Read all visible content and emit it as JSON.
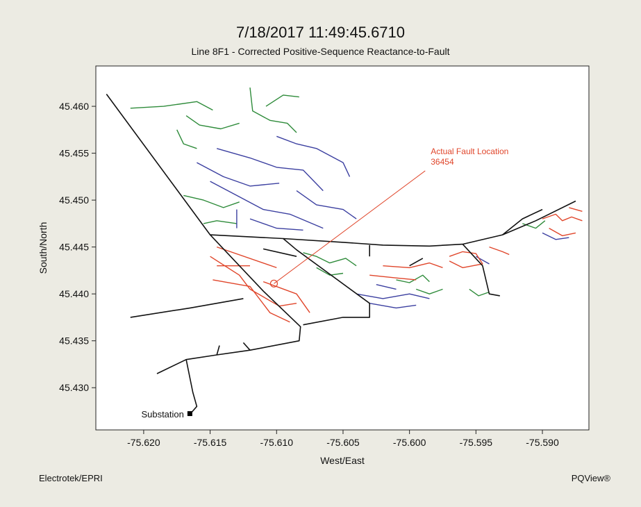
{
  "header": {
    "title": "7/18/2017 11:49:45.6710",
    "subtitle": "Line 8F1 - Corrected Positive-Sequence Reactance-to-Fault"
  },
  "footer": {
    "left": "Electrotek/EPRI",
    "right": "PQView®"
  },
  "colors": {
    "trunk": "#111111",
    "red_branch": "#e0452a",
    "green_branch": "#2e8b3a",
    "blue_branch": "#3b3fa0",
    "annotation": "#e0452a",
    "background": "#ecebe3",
    "plot_background": "#ffffff"
  },
  "chart_data": {
    "type": "scatter",
    "xlabel": "West/East",
    "ylabel": "South/North",
    "xlim": [
      -75.6236,
      -75.5865
    ],
    "ylim": [
      45.4255,
      45.4643
    ],
    "xticks": [
      -75.62,
      -75.615,
      -75.61,
      -75.605,
      -75.6,
      -75.595,
      -75.59
    ],
    "xtick_labels": [
      "-75.620",
      "-75.615",
      "-75.610",
      "-75.605",
      "-75.600",
      "-75.595",
      "-75.590"
    ],
    "yticks": [
      45.43,
      45.435,
      45.44,
      45.445,
      45.45,
      45.455,
      45.46
    ],
    "ytick_labels": [
      "45.430",
      "45.435",
      "45.440",
      "45.445",
      "45.450",
      "45.455",
      "45.460"
    ],
    "grid": false,
    "annotations": [
      {
        "label": "Actual Fault Location",
        "value": "36454",
        "point": [
          -75.6102,
          45.4411
        ],
        "text_at": [
          -75.5984,
          45.4549
        ]
      },
      {
        "label": "Substation",
        "point": [
          -75.6165,
          45.4272
        ]
      }
    ],
    "series": [
      {
        "color_key": "trunk",
        "lines": [
          [
            [
              -75.6228,
              45.4613
            ],
            [
              -75.615,
              45.4463
            ],
            [
              -75.611,
              45.4403
            ],
            [
              -75.6082,
              45.4365
            ],
            [
              -75.6083,
              45.435
            ],
            [
              -75.612,
              45.434
            ],
            [
              -75.6145,
              45.4335
            ],
            [
              -75.6168,
              45.433
            ],
            [
              -75.619,
              45.4315
            ]
          ],
          [
            [
              -75.6168,
              45.433
            ],
            [
              -75.6163,
              45.4295
            ],
            [
              -75.616,
              45.428
            ],
            [
              -75.6165,
              45.4272
            ]
          ],
          [
            [
              -75.615,
              45.4463
            ],
            [
              -75.6095,
              45.4459
            ],
            [
              -75.605,
              45.4455
            ],
            [
              -75.602,
              45.4452
            ],
            [
              -75.5985,
              45.4451
            ],
            [
              -75.596,
              45.4453
            ],
            [
              -75.593,
              45.4463
            ],
            [
              -75.5905,
              45.4478
            ],
            [
              -75.5875,
              45.4499
            ]
          ],
          [
            [
              -75.6095,
              45.4459
            ],
            [
              -75.6085,
              45.4447
            ],
            [
              -75.603,
              45.439
            ],
            [
              -75.603,
              45.4375
            ],
            [
              -75.605,
              45.4375
            ],
            [
              -75.608,
              45.4367
            ]
          ],
          [
            [
              -75.596,
              45.4453
            ],
            [
              -75.5945,
              45.443
            ],
            [
              -75.594,
              45.44
            ],
            [
              -75.5932,
              45.4398
            ]
          ],
          [
            [
              -75.593,
              45.4463
            ],
            [
              -75.5915,
              45.448
            ],
            [
              -75.59,
              45.449
            ]
          ],
          [
            [
              -75.611,
              45.4448
            ],
            [
              -75.6085,
              45.444
            ]
          ],
          [
            [
              -75.621,
              45.4375
            ],
            [
              -75.6165,
              45.4385
            ],
            [
              -75.6125,
              45.4395
            ]
          ],
          [
            [
              -75.612,
              45.434
            ],
            [
              -75.6125,
              45.4348
            ]
          ],
          [
            [
              -75.6145,
              45.4335
            ],
            [
              -75.6143,
              45.4345
            ]
          ],
          [
            [
              -75.6,
              45.443
            ],
            [
              -75.599,
              45.4438
            ]
          ],
          [
            [
              -75.603,
              45.4452
            ],
            [
              -75.603,
              45.444
            ]
          ]
        ]
      },
      {
        "color_key": "red_branch",
        "lines": [
          [
            [
              -75.615,
              45.444
            ],
            [
              -75.6128,
              45.442
            ],
            [
              -75.612,
              45.4405
            ]
          ],
          [
            [
              -75.612,
              45.4405
            ],
            [
              -75.6098,
              45.4387
            ],
            [
              -75.6085,
              45.439
            ]
          ],
          [
            [
              -75.6145,
              45.445
            ],
            [
              -75.61,
              45.4428
            ]
          ],
          [
            [
              -75.6145,
              45.443
            ],
            [
              -75.612,
              45.443
            ]
          ],
          [
            [
              -75.611,
              45.4413
            ],
            [
              -75.6085,
              45.44
            ],
            [
              -75.6075,
              45.438
            ]
          ],
          [
            [
              -75.6148,
              45.4415
            ],
            [
              -75.612,
              45.4408
            ],
            [
              -75.6105,
              45.438
            ],
            [
              -75.609,
              45.437
            ]
          ],
          [
            [
              -75.602,
              45.443
            ],
            [
              -75.6,
              45.4428
            ],
            [
              -75.5985,
              45.4433
            ],
            [
              -75.5975,
              45.4428
            ]
          ],
          [
            [
              -75.603,
              45.442
            ],
            [
              -75.601,
              45.4417
            ],
            [
              -75.5995,
              45.4415
            ]
          ],
          [
            [
              -75.597,
              45.444
            ],
            [
              -75.596,
              45.4445
            ],
            [
              -75.595,
              45.4443
            ],
            [
              -75.5945,
              45.4432
            ],
            [
              -75.596,
              45.4428
            ],
            [
              -75.597,
              45.4435
            ]
          ],
          [
            [
              -75.594,
              45.445
            ],
            [
              -75.593,
              45.4445
            ],
            [
              -75.5925,
              45.4442
            ]
          ],
          [
            [
              -75.59,
              45.448
            ],
            [
              -75.589,
              45.4485
            ],
            [
              -75.5885,
              45.4478
            ],
            [
              -75.5878,
              45.4482
            ],
            [
              -75.587,
              45.4478
            ]
          ],
          [
            [
              -75.5895,
              45.447
            ],
            [
              -75.5885,
              45.4462
            ],
            [
              -75.5875,
              45.4465
            ]
          ],
          [
            [
              -75.588,
              45.4492
            ],
            [
              -75.587,
              45.4488
            ]
          ]
        ]
      },
      {
        "color_key": "green_branch",
        "lines": [
          [
            [
              -75.621,
              45.4598
            ],
            [
              -75.6185,
              45.46
            ],
            [
              -75.616,
              45.4605
            ],
            [
              -75.6148,
              45.4596
            ]
          ],
          [
            [
              -75.6168,
              45.459
            ],
            [
              -75.6158,
              45.458
            ],
            [
              -75.6142,
              45.4576
            ],
            [
              -75.6128,
              45.4582
            ]
          ],
          [
            [
              -75.6175,
              45.4575
            ],
            [
              -75.617,
              45.456
            ],
            [
              -75.616,
              45.4555
            ]
          ],
          [
            [
              -75.612,
              45.462
            ],
            [
              -75.6118,
              45.4595
            ],
            [
              -75.6105,
              45.4585
            ],
            [
              -75.6092,
              45.4582
            ],
            [
              -75.6085,
              45.4572
            ]
          ],
          [
            [
              -75.6108,
              45.46
            ],
            [
              -75.6095,
              45.4612
            ],
            [
              -75.6083,
              45.461
            ]
          ],
          [
            [
              -75.617,
              45.4505
            ],
            [
              -75.6155,
              45.45
            ],
            [
              -75.614,
              45.4492
            ],
            [
              -75.6128,
              45.4498
            ]
          ],
          [
            [
              -75.6155,
              45.4475
            ],
            [
              -75.6145,
              45.4478
            ],
            [
              -75.613,
              45.4475
            ]
          ],
          [
            [
              -75.608,
              45.4444
            ],
            [
              -75.607,
              45.444
            ],
            [
              -75.606,
              45.4433
            ],
            [
              -75.6048,
              45.4438
            ],
            [
              -75.604,
              45.443
            ]
          ],
          [
            [
              -75.607,
              45.4428
            ],
            [
              -75.606,
              45.442
            ],
            [
              -75.605,
              45.4422
            ]
          ],
          [
            [
              -75.601,
              45.4415
            ],
            [
              -75.6,
              45.4412
            ],
            [
              -75.599,
              45.442
            ],
            [
              -75.5985,
              45.4413
            ]
          ],
          [
            [
              -75.5995,
              45.4405
            ],
            [
              -75.5985,
              45.44
            ],
            [
              -75.5975,
              45.4405
            ]
          ],
          [
            [
              -75.5955,
              45.4405
            ],
            [
              -75.5948,
              45.4398
            ],
            [
              -75.594,
              45.4402
            ]
          ],
          [
            [
              -75.5915,
              45.4475
            ],
            [
              -75.5905,
              45.447
            ],
            [
              -75.5898,
              45.4478
            ]
          ]
        ]
      },
      {
        "color_key": "blue_branch",
        "lines": [
          [
            [
              -75.6145,
              45.4555
            ],
            [
              -75.612,
              45.4545
            ],
            [
              -75.61,
              45.4535
            ],
            [
              -75.608,
              45.4532
            ],
            [
              -75.6065,
              45.451
            ]
          ],
          [
            [
              -75.616,
              45.454
            ],
            [
              -75.614,
              45.4525
            ],
            [
              -75.612,
              45.4515
            ],
            [
              -75.6098,
              45.4518
            ]
          ],
          [
            [
              -75.615,
              45.452
            ],
            [
              -75.613,
              45.4505
            ],
            [
              -75.611,
              45.449
            ],
            [
              -75.609,
              45.4485
            ],
            [
              -75.6065,
              45.447
            ]
          ],
          [
            [
              -75.61,
              45.4568
            ],
            [
              -75.6085,
              45.456
            ],
            [
              -75.607,
              45.4555
            ],
            [
              -75.605,
              45.454
            ],
            [
              -75.6045,
              45.4525
            ]
          ],
          [
            [
              -75.612,
              45.448
            ],
            [
              -75.61,
              45.447
            ],
            [
              -75.608,
              45.4468
            ]
          ],
          [
            [
              -75.6085,
              45.451
            ],
            [
              -75.607,
              45.4495
            ],
            [
              -75.605,
              45.449
            ],
            [
              -75.604,
              45.448
            ]
          ],
          [
            [
              -75.613,
              45.449
            ],
            [
              -75.613,
              45.447
            ]
          ],
          [
            [
              -75.604,
              45.44
            ],
            [
              -75.602,
              45.4395
            ],
            [
              -75.6,
              45.44
            ],
            [
              -75.5985,
              45.4395
            ]
          ],
          [
            [
              -75.603,
              45.439
            ],
            [
              -75.601,
              45.4385
            ],
            [
              -75.5995,
              45.4388
            ]
          ],
          [
            [
              -75.6025,
              45.441
            ],
            [
              -75.601,
              45.4405
            ]
          ],
          [
            [
              -75.59,
              45.4465
            ],
            [
              -75.589,
              45.4458
            ],
            [
              -75.588,
              45.446
            ]
          ],
          [
            [
              -75.595,
              45.444
            ],
            [
              -75.594,
              45.4432
            ]
          ]
        ]
      }
    ]
  }
}
